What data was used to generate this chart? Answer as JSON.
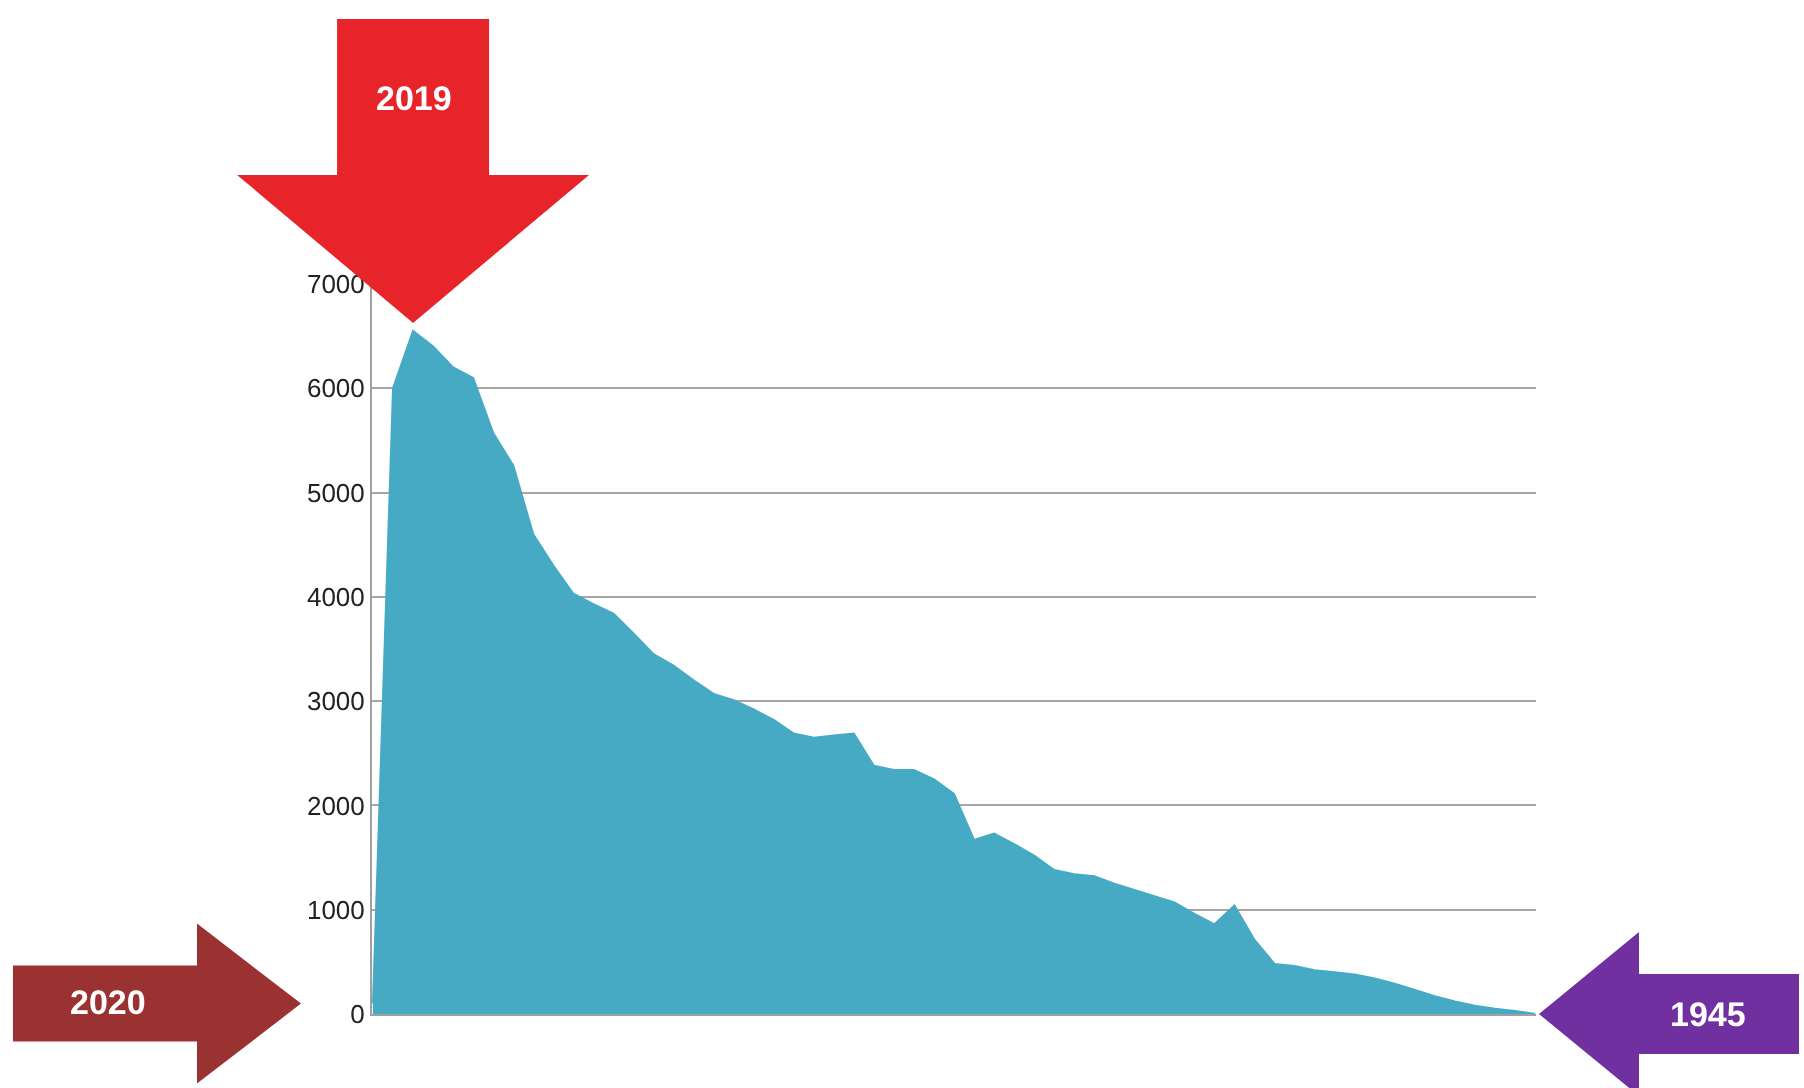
{
  "chart_data": {
    "type": "area",
    "categories": [
      null,
      null,
      null,
      null,
      null,
      null,
      null,
      null,
      null,
      null,
      null,
      null,
      null,
      null,
      null,
      null,
      null,
      null,
      null,
      null,
      null,
      null,
      null,
      null,
      null,
      null,
      null,
      null,
      null,
      null,
      null,
      null,
      null,
      null,
      null,
      null,
      null,
      null,
      null,
      null,
      null,
      null,
      null,
      null,
      null,
      null,
      null,
      null,
      null,
      null,
      null,
      null,
      null,
      null,
      null,
      null,
      null,
      null,
      null
    ],
    "series": [
      {
        "color": "#46aac4",
        "values": [
          100,
          6000,
          6550,
          6400,
          6200,
          6100,
          5570,
          5260,
          4600,
          4300,
          4030,
          3930,
          3840,
          3650,
          3450,
          3340,
          3200,
          3070,
          3010,
          2920,
          2820,
          2690,
          2650,
          2670,
          2690,
          2380,
          2340,
          2340,
          2250,
          2110,
          1670,
          1730,
          1630,
          1520,
          1380,
          1340,
          1320,
          1250,
          1190,
          1130,
          1070,
          960,
          860,
          1040,
          710,
          480,
          460,
          420,
          400,
          380,
          340,
          290,
          230,
          170,
          120,
          80,
          50,
          30,
          0
        ]
      }
    ],
    "ylim": [
      0,
      7000
    ],
    "yticks": [
      0,
      1000,
      2000,
      3000,
      4000,
      5000,
      6000,
      7000
    ],
    "grid": "y",
    "tick_labels": "y",
    "legend": false,
    "annotations": [
      "2019",
      "2020",
      "1945"
    ]
  }
}
